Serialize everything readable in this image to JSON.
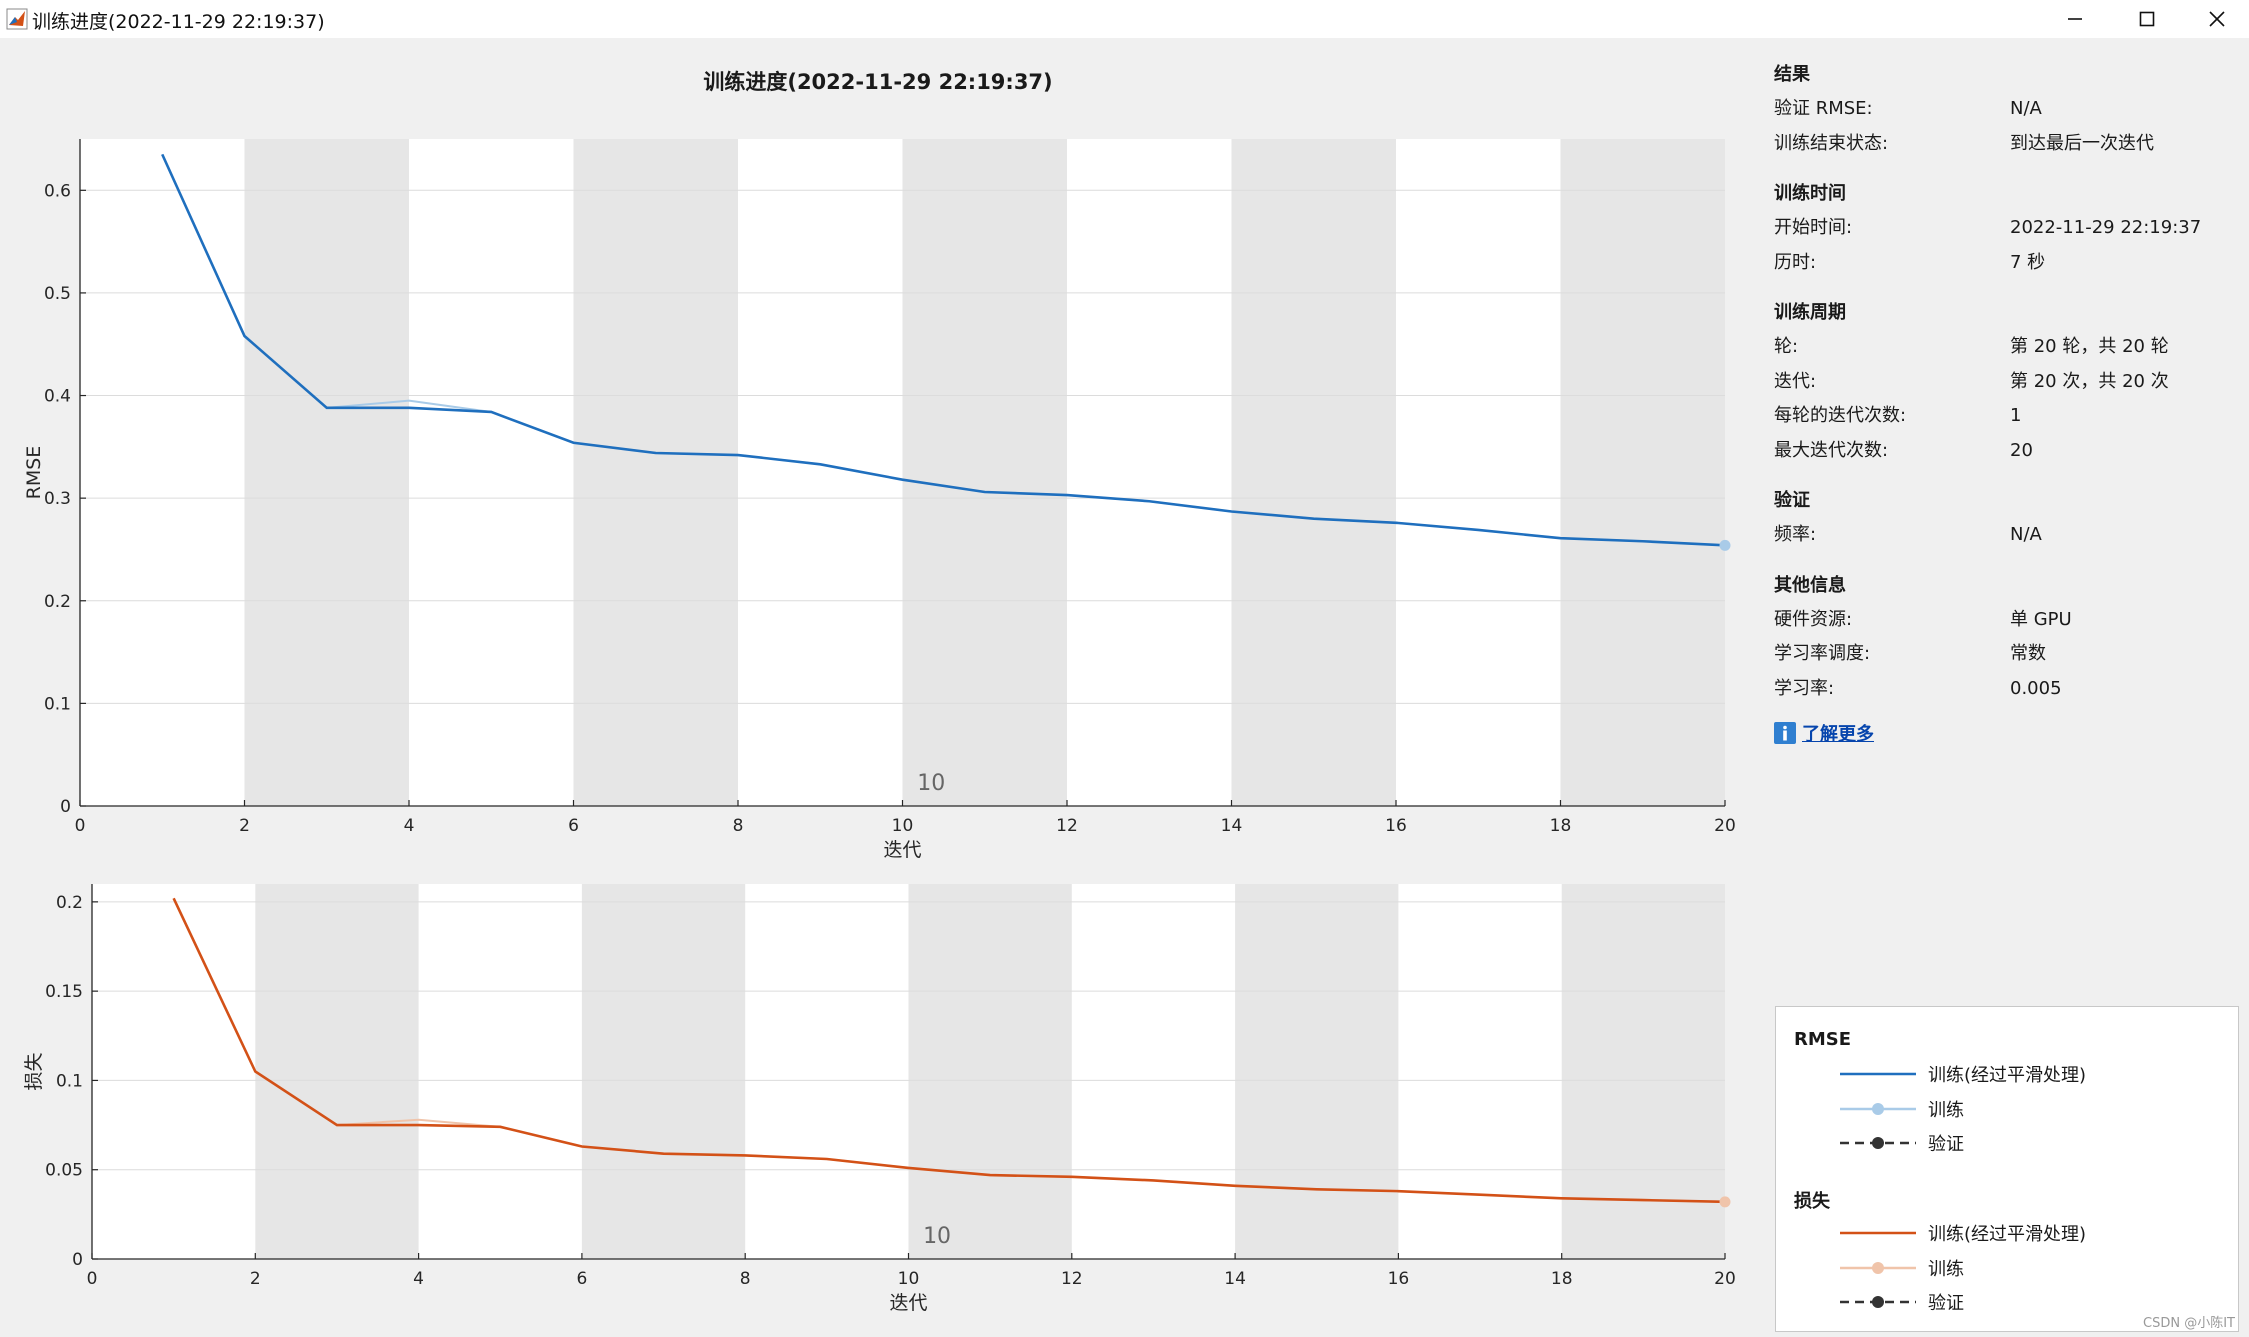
{
  "window": {
    "title": "训练进度(2022-11-29 22:19:37)",
    "icons": {
      "app": "matlab-icon",
      "minimize": "minimize-icon",
      "maximize": "maximize-icon",
      "close": "close-icon"
    }
  },
  "chart_title": "训练进度(2022-11-29 22:19:37)",
  "chart_data": [
    {
      "type": "line",
      "ylabel": "RMSE",
      "xlabel": "迭代",
      "xlim": [
        0,
        20
      ],
      "ylim": [
        0,
        0.65
      ],
      "x_ticks": [
        "0",
        "2",
        "4",
        "6",
        "8",
        "10",
        "12",
        "14",
        "16",
        "18",
        "20"
      ],
      "y_ticks": [
        "0",
        "0.1",
        "0.2",
        "0.3",
        "0.4",
        "0.5",
        "0.6"
      ],
      "epoch_label": "10",
      "grid": true,
      "x": [
        1,
        2,
        3,
        4,
        5,
        6,
        7,
        8,
        9,
        10,
        11,
        12,
        13,
        14,
        15,
        16,
        17,
        18,
        19,
        20
      ],
      "series": [
        {
          "name": "训练(经过平滑处理)",
          "color": "#1f6fbe",
          "values": [
            0.635,
            0.458,
            0.388,
            0.388,
            0.384,
            0.354,
            0.344,
            0.342,
            0.333,
            0.318,
            0.306,
            0.303,
            0.297,
            0.287,
            0.28,
            0.276,
            0.269,
            0.261,
            0.258,
            0.254
          ]
        },
        {
          "name": "训练",
          "color": "#a9cbe8",
          "values": [
            0.635,
            0.458,
            0.388,
            0.395,
            0.384,
            0.354,
            0.344,
            0.342,
            0.333,
            0.318,
            0.306,
            0.303,
            0.297,
            0.287,
            0.28,
            0.276,
            0.269,
            0.261,
            0.258,
            0.254
          ]
        }
      ]
    },
    {
      "type": "line",
      "ylabel": "损失",
      "xlabel": "迭代",
      "xlim": [
        0,
        20
      ],
      "ylim": [
        0,
        0.21
      ],
      "x_ticks": [
        "0",
        "2",
        "4",
        "6",
        "8",
        "10",
        "12",
        "14",
        "16",
        "18",
        "20"
      ],
      "y_ticks": [
        "0",
        "0.05",
        "0.1",
        "0.15",
        "0.2"
      ],
      "epoch_label": "10",
      "grid": true,
      "x": [
        1,
        2,
        3,
        4,
        5,
        6,
        7,
        8,
        9,
        10,
        11,
        12,
        13,
        14,
        15,
        16,
        17,
        18,
        19,
        20
      ],
      "series": [
        {
          "name": "训练(经过平滑处理)",
          "color": "#d35117",
          "values": [
            0.202,
            0.105,
            0.075,
            0.075,
            0.074,
            0.063,
            0.059,
            0.058,
            0.056,
            0.051,
            0.047,
            0.046,
            0.044,
            0.041,
            0.039,
            0.038,
            0.036,
            0.034,
            0.033,
            0.032
          ]
        },
        {
          "name": "训练",
          "color": "#f0c4aa",
          "values": [
            0.202,
            0.105,
            0.075,
            0.078,
            0.074,
            0.063,
            0.059,
            0.058,
            0.056,
            0.051,
            0.047,
            0.046,
            0.044,
            0.041,
            0.039,
            0.038,
            0.036,
            0.034,
            0.033,
            0.032
          ]
        }
      ]
    }
  ],
  "info": {
    "results": {
      "title": "结果",
      "val_rmse_label": "验证 RMSE:",
      "val_rmse_value": "N/A",
      "end_state_label": "训练结束状态:",
      "end_state_value": "到达最后一次迭代"
    },
    "time": {
      "title": "训练时间",
      "start_label": "开始时间:",
      "start_value": "2022-11-29 22:19:37",
      "elapsed_label": "历时:",
      "elapsed_value": "7 秒"
    },
    "cycle": {
      "title": "训练周期",
      "epoch_label": "轮:",
      "epoch_value": "第 20 轮，共 20 轮",
      "iter_label": "迭代:",
      "iter_value": "第 20 次，共 20 次",
      "iter_per_epoch_label": "每轮的迭代次数:",
      "iter_per_epoch_value": "1",
      "max_iter_label": "最大迭代次数:",
      "max_iter_value": "20"
    },
    "validation": {
      "title": "验证",
      "freq_label": "频率:",
      "freq_value": "N/A"
    },
    "other": {
      "title": "其他信息",
      "hw_label": "硬件资源:",
      "hw_value": "单 GPU",
      "lr_sched_label": "学习率调度:",
      "lr_sched_value": "常数",
      "lr_label": "学习率:",
      "lr_value": "0.005"
    },
    "learn_more": {
      "icon": "info-icon",
      "label": "了解更多"
    }
  },
  "legend": {
    "rmse_title": "RMSE",
    "rmse_items": [
      "训练(经过平滑处理)",
      "训练",
      "验证"
    ],
    "loss_title": "损失",
    "loss_items": [
      "训练(经过平滑处理)",
      "训练",
      "验证"
    ],
    "colors": {
      "rmse_smooth": "#1f6fbe",
      "rmse_raw": "#a9cbe8",
      "loss_smooth": "#d35117",
      "loss_raw": "#f0c4aa",
      "validation": "#333333"
    }
  },
  "watermark": "CSDN @小陈IT"
}
